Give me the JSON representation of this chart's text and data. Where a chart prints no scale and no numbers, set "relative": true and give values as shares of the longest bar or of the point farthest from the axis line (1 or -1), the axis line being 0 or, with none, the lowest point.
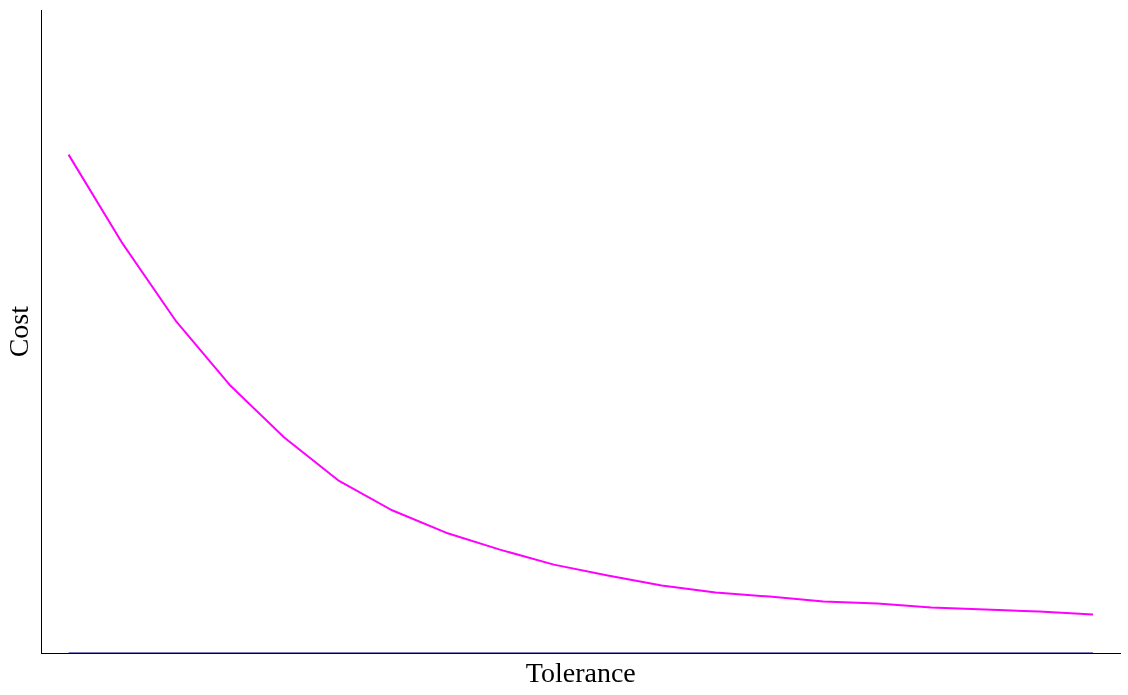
{
  "chart_data": {
    "type": "line",
    "relative": true,
    "xlabel": "Tolerance",
    "ylabel": "Cost",
    "grid": false,
    "legend": false,
    "marker": "none",
    "line_style": "solid",
    "categories": [
      null,
      null,
      null,
      null,
      null,
      null,
      null,
      null,
      null,
      null,
      null,
      null,
      null,
      null,
      null,
      null,
      null,
      null,
      null,
      null
    ],
    "series": [
      {
        "color": "#ff00ff",
        "values": [
          1,
          0.822,
          0.665,
          0.537,
          0.433,
          0.347,
          0.287,
          0.242,
          0.208,
          0.178,
          0.156,
          0.136,
          0.122,
          0.114,
          0.104,
          0.1,
          0.092,
          0.088,
          0.084,
          0.078
        ]
      },
      {
        "color": "#000080",
        "values": [
          0,
          0,
          0,
          0,
          0,
          0,
          0,
          0,
          0,
          0,
          0,
          0,
          0,
          0,
          0,
          0,
          0,
          0,
          0,
          0
        ]
      }
    ]
  }
}
